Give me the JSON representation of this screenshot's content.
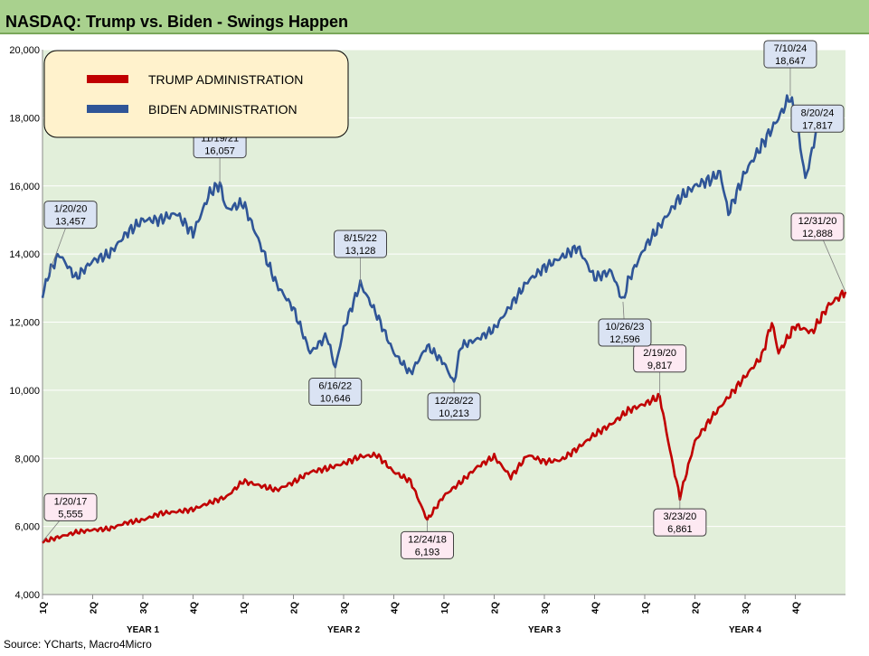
{
  "title": "NASDAQ: Trump vs. Biden - Swings Happen",
  "source": "Source: YCharts, Macro4Micro",
  "colors": {
    "plot_bg": "#e2efda",
    "title_bg": "#a9d18e",
    "trump": "#c00000",
    "biden": "#2f5597",
    "legend_bg": "#fff2cc",
    "trump_label_bg": "#fde9f2",
    "biden_label_bg": "#dae3f3"
  },
  "chart_data": {
    "type": "line",
    "ylim": [
      4000,
      20000
    ],
    "yticks": [
      "4,000",
      "6,000",
      "8,000",
      "10,000",
      "12,000",
      "14,000",
      "16,000",
      "18,000",
      "20,000"
    ],
    "ytick_values": [
      4000,
      6000,
      8000,
      10000,
      12000,
      14000,
      16000,
      18000,
      20000
    ],
    "x_range_months": [
      0,
      48
    ],
    "quarter_ticks": [
      "1Q",
      "2Q",
      "3Q",
      "4Q",
      "1Q",
      "2Q",
      "3Q",
      "4Q",
      "1Q",
      "2Q",
      "3Q",
      "4Q",
      "1Q",
      "2Q",
      "3Q",
      "4Q"
    ],
    "year_labels": [
      "YEAR 1",
      "YEAR 2",
      "YEAR 3",
      "YEAR 4"
    ],
    "legend": [
      {
        "name": "TRUMP ADMINISTRATION",
        "key": "trump"
      },
      {
        "name": "BIDEN ADMINISTRATION",
        "key": "biden"
      }
    ],
    "series": [
      {
        "name": "TRUMP ADMINISTRATION",
        "key": "trump",
        "points": [
          [
            0,
            5555
          ],
          [
            1,
            5690
          ],
          [
            2,
            5830
          ],
          [
            3,
            5900
          ],
          [
            4,
            5930
          ],
          [
            5,
            6110
          ],
          [
            6,
            6190
          ],
          [
            7,
            6380
          ],
          [
            8,
            6430
          ],
          [
            9,
            6500
          ],
          [
            10,
            6700
          ],
          [
            11,
            6870
          ],
          [
            12,
            7330
          ],
          [
            13,
            7200
          ],
          [
            14,
            7070
          ],
          [
            15,
            7300
          ],
          [
            16,
            7600
          ],
          [
            17,
            7700
          ],
          [
            18,
            7850
          ],
          [
            19,
            8050
          ],
          [
            20,
            8100
          ],
          [
            21,
            7600
          ],
          [
            22,
            7330
          ],
          [
            23,
            6193
          ],
          [
            24,
            6900
          ],
          [
            25,
            7300
          ],
          [
            26,
            7750
          ],
          [
            27,
            8050
          ],
          [
            28,
            7450
          ],
          [
            29,
            8100
          ],
          [
            30,
            7900
          ],
          [
            31,
            7950
          ],
          [
            32,
            8300
          ],
          [
            33,
            8700
          ],
          [
            34,
            9000
          ],
          [
            35,
            9400
          ],
          [
            36,
            9600
          ],
          [
            36.9,
            9817
          ],
          [
            37.6,
            8000
          ],
          [
            38.1,
            6861
          ],
          [
            39,
            8500
          ],
          [
            40,
            9200
          ],
          [
            41,
            9800
          ],
          [
            42,
            10400
          ],
          [
            43,
            11000
          ],
          [
            43.6,
            12000
          ],
          [
            44,
            11100
          ],
          [
            45,
            11900
          ],
          [
            46,
            11700
          ],
          [
            47,
            12500
          ],
          [
            48,
            12888
          ]
        ]
      },
      {
        "name": "BIDEN ADMINISTRATION",
        "key": "biden",
        "points": [
          [
            0,
            12800
          ],
          [
            0.4,
            13457
          ],
          [
            1,
            14000
          ],
          [
            2,
            13300
          ],
          [
            3,
            13800
          ],
          [
            4,
            14000
          ],
          [
            5,
            14600
          ],
          [
            6,
            15000
          ],
          [
            7,
            15000
          ],
          [
            8,
            15200
          ],
          [
            9,
            14600
          ],
          [
            10,
            15800
          ],
          [
            10.6,
            16057
          ],
          [
            11,
            15300
          ],
          [
            12,
            15500
          ],
          [
            13,
            14300
          ],
          [
            14,
            13100
          ],
          [
            15,
            12400
          ],
          [
            16,
            11100
          ],
          [
            17,
            11600
          ],
          [
            17.5,
            10646
          ],
          [
            18,
            11800
          ],
          [
            19,
            13128
          ],
          [
            20,
            12200
          ],
          [
            21,
            11100
          ],
          [
            22,
            10500
          ],
          [
            23,
            11300
          ],
          [
            24,
            10800
          ],
          [
            24.6,
            10213
          ],
          [
            25,
            11300
          ],
          [
            26,
            11500
          ],
          [
            27,
            11800
          ],
          [
            28,
            12500
          ],
          [
            29,
            13200
          ],
          [
            30,
            13600
          ],
          [
            31,
            13900
          ],
          [
            32,
            14200
          ],
          [
            33,
            13300
          ],
          [
            34,
            13500
          ],
          [
            34.7,
            12596
          ],
          [
            35,
            13200
          ],
          [
            36,
            14200
          ],
          [
            37,
            14900
          ],
          [
            38,
            15600
          ],
          [
            39,
            16000
          ],
          [
            40,
            16200
          ],
          [
            40.5,
            16400
          ],
          [
            41,
            15200
          ],
          [
            42,
            16400
          ],
          [
            43,
            17200
          ],
          [
            44,
            18000
          ],
          [
            44.7,
            18647
          ],
          [
            45.2,
            17500
          ],
          [
            45.6,
            16200
          ],
          [
            46,
            17000
          ],
          [
            46.3,
            17817
          ]
        ]
      }
    ],
    "labels": [
      {
        "series": "trump",
        "date": "1/20/17",
        "value": "5,555",
        "at": [
          0,
          5555
        ]
      },
      {
        "series": "trump",
        "date": "12/24/18",
        "value": "6,193",
        "at": [
          23,
          6193
        ]
      },
      {
        "series": "trump",
        "date": "2/19/20",
        "value": "9,817",
        "at": [
          36.9,
          9817
        ]
      },
      {
        "series": "trump",
        "date": "3/23/20",
        "value": "6,861",
        "at": [
          38.1,
          6861
        ]
      },
      {
        "series": "trump",
        "date": "12/31/20",
        "value": "12,888",
        "at": [
          48,
          12888
        ]
      },
      {
        "series": "biden",
        "date": "1/20/20",
        "value": "13,457",
        "at": [
          0.4,
          13457
        ]
      },
      {
        "series": "biden",
        "date": "11/19/21",
        "value": "16,057",
        "at": [
          10.6,
          16057
        ]
      },
      {
        "series": "biden",
        "date": "6/16/22",
        "value": "10,646",
        "at": [
          17.5,
          10646
        ]
      },
      {
        "series": "biden",
        "date": "8/15/22",
        "value": "13,128",
        "at": [
          19,
          13128
        ]
      },
      {
        "series": "biden",
        "date": "12/28/22",
        "value": "10,213",
        "at": [
          24.6,
          10213
        ]
      },
      {
        "series": "biden",
        "date": "10/26/23",
        "value": "12,596",
        "at": [
          34.7,
          12596
        ]
      },
      {
        "series": "biden",
        "date": "7/10/24",
        "value": "18,647",
        "at": [
          44.7,
          18647
        ]
      },
      {
        "series": "biden",
        "date": "8/20/24",
        "value": "17,817",
        "at": [
          46.3,
          17817
        ]
      }
    ]
  }
}
